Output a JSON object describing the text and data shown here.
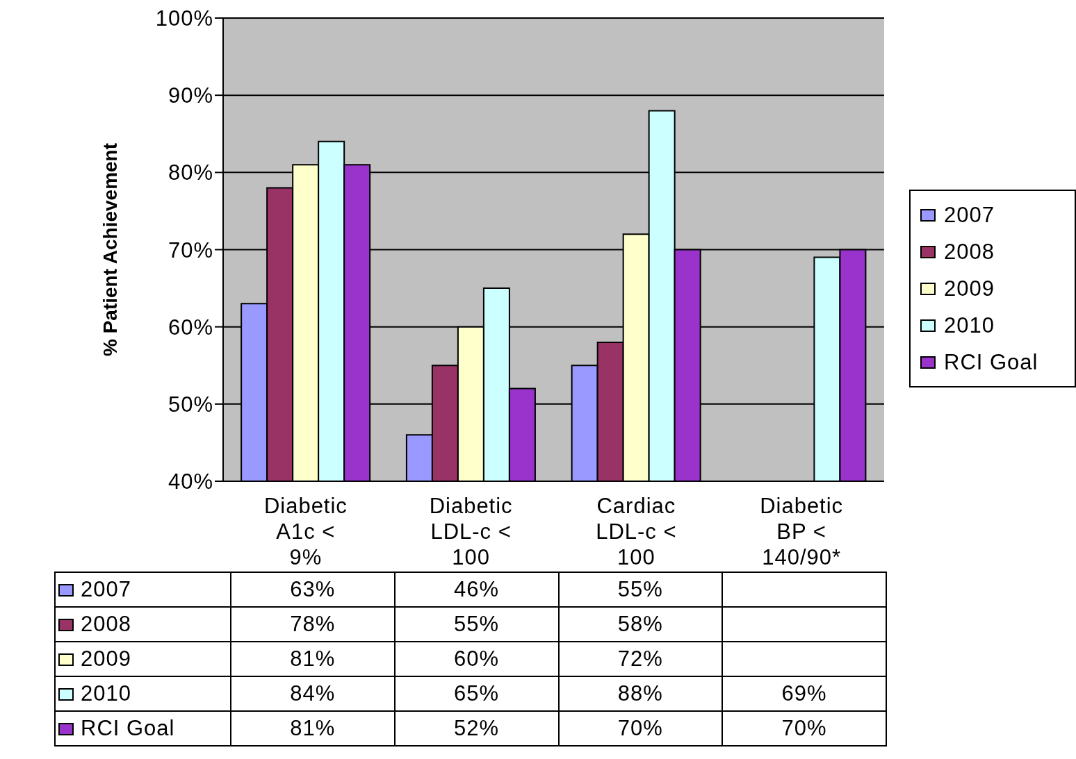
{
  "chart_data": {
    "type": "bar",
    "ylabel": "% Patient Achievement",
    "categories": [
      "Diabetic A1c < 9%",
      "Diabetic LDL-c < 100",
      "Cardiac LDL-c < 100",
      "Diabetic BP < 140/90*"
    ],
    "series": [
      {
        "name": "2007",
        "color": "#9999ff",
        "values": [
          63,
          46,
          55,
          null
        ],
        "value_labels": [
          "63%",
          "46%",
          "55%",
          null
        ]
      },
      {
        "name": "2008",
        "color": "#993366",
        "values": [
          78,
          55,
          58,
          null
        ],
        "value_labels": [
          "78%",
          "55%",
          "58%",
          null
        ]
      },
      {
        "name": "2009",
        "color": "#ffffcc",
        "values": [
          81,
          60,
          72,
          null
        ],
        "value_labels": [
          "81%",
          "60%",
          "72%",
          null
        ]
      },
      {
        "name": "2010",
        "color": "#ccffff",
        "values": [
          84,
          65,
          88,
          69
        ],
        "value_labels": [
          "84%",
          "65%",
          "88%",
          "69%"
        ]
      },
      {
        "name": "RCI Goal",
        "color": "#9933cc",
        "values": [
          81,
          52,
          70,
          70
        ],
        "value_labels": [
          "81%",
          "52%",
          "70%",
          "70%"
        ]
      }
    ],
    "ylim": [
      40,
      100
    ],
    "yticks": [
      {
        "value": 40,
        "label": "40%"
      },
      {
        "value": 50,
        "label": "50%"
      },
      {
        "value": 60,
        "label": "60%"
      },
      {
        "value": 70,
        "label": "70%"
      },
      {
        "value": 80,
        "label": "80%"
      },
      {
        "value": 90,
        "label": "90%"
      },
      {
        "value": 100,
        "label": "100%"
      }
    ],
    "grid": "y",
    "legend": "right"
  }
}
